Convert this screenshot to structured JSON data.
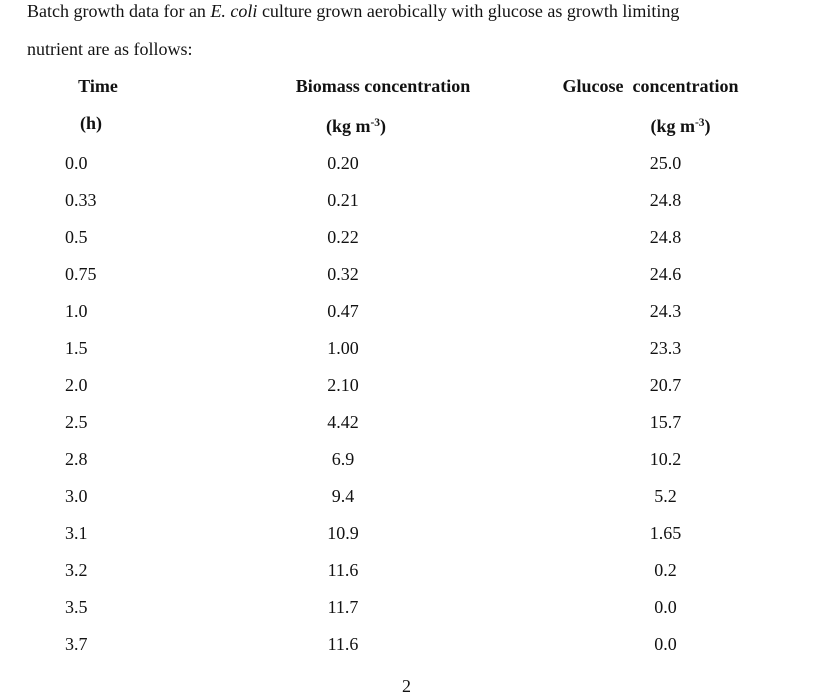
{
  "intro": {
    "line1_pre": "Batch growth data for an ",
    "line1_italic": "E. coli",
    "line1_post": " culture grown aerobically with glucose as growth limiting",
    "line2": "nutrient are as follows:"
  },
  "table": {
    "columns": [
      {
        "name": "Time",
        "unit": "(h)"
      },
      {
        "name": "Biomass concentration",
        "unit_pre": "(kg m",
        "unit_sup": "-3",
        "unit_post": ")"
      },
      {
        "name": "Glucose  concentration",
        "unit_pre": "(kg m",
        "unit_sup": "-3",
        "unit_post": ")"
      }
    ],
    "rows": [
      {
        "time": "0.0",
        "biomass": "0.20",
        "glucose": "25.0"
      },
      {
        "time": "0.33",
        "biomass": "0.21",
        "glucose": "24.8"
      },
      {
        "time": "0.5",
        "biomass": "0.22",
        "glucose": "24.8"
      },
      {
        "time": "0.75",
        "biomass": "0.32",
        "glucose": "24.6"
      },
      {
        "time": "1.0",
        "biomass": "0.47",
        "glucose": "24.3"
      },
      {
        "time": "1.5",
        "biomass": "1.00",
        "glucose": "23.3"
      },
      {
        "time": "2.0",
        "biomass": "2.10",
        "glucose": "20.7"
      },
      {
        "time": "2.5",
        "biomass": "4.42",
        "glucose": "15.7"
      },
      {
        "time": "2.8",
        "biomass": "6.9",
        "glucose": "10.2"
      },
      {
        "time": "3.0",
        "biomass": "9.4",
        "glucose": "5.2"
      },
      {
        "time": "3.1",
        "biomass": "10.9",
        "glucose": "1.65"
      },
      {
        "time": "3.2",
        "biomass": "11.6",
        "glucose": "0.2"
      },
      {
        "time": "3.5",
        "biomass": "11.7",
        "glucose": "0.0"
      },
      {
        "time": "3.7",
        "biomass": "11.6",
        "glucose": "0.0"
      }
    ]
  },
  "page_number": "2",
  "colors": {
    "text": "#121212",
    "background": "#ffffff"
  }
}
